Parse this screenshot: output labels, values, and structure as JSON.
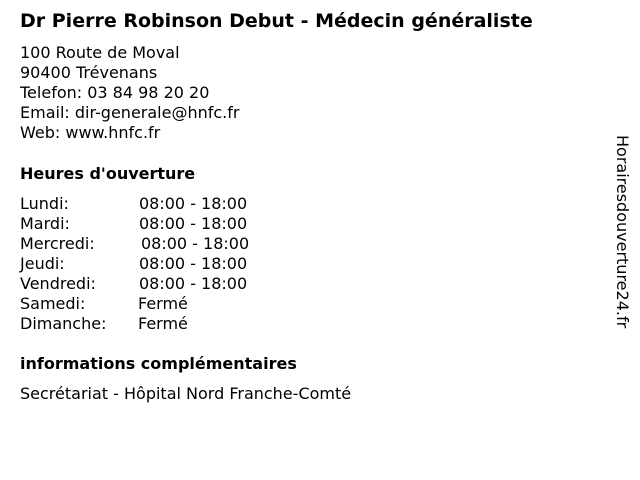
{
  "title": "Dr Pierre Robinson Debut - Médecin généraliste",
  "address": {
    "street": "100 Route de Moval",
    "city": "90400 Trévenans",
    "phone": "Telefon: 03 84 98 20 20",
    "email": "Email: dir-generale@hnfc.fr",
    "web": "Web: www.hnfc.fr"
  },
  "hours_heading": "Heures d'ouverture",
  "hours": [
    {
      "day": "Lundi:",
      "time": "08:00 - 18:00"
    },
    {
      "day": "Mardi:",
      "time": "08:00 - 18:00"
    },
    {
      "day": "Mercredi:",
      "time": "08:00 - 18:00"
    },
    {
      "day": "Jeudi:",
      "time": "08:00 - 18:00"
    },
    {
      "day": "Vendredi:",
      "time": "08:00 - 18:00"
    },
    {
      "day": "Samedi:",
      "time": "Fermé"
    },
    {
      "day": "Dimanche:",
      "time": "Fermé"
    }
  ],
  "info_heading": "informations complémentaires",
  "info_text": "Secrétariat - Hôpital Nord Franche-Comté",
  "watermark": "Horairesdouverture24.fr"
}
